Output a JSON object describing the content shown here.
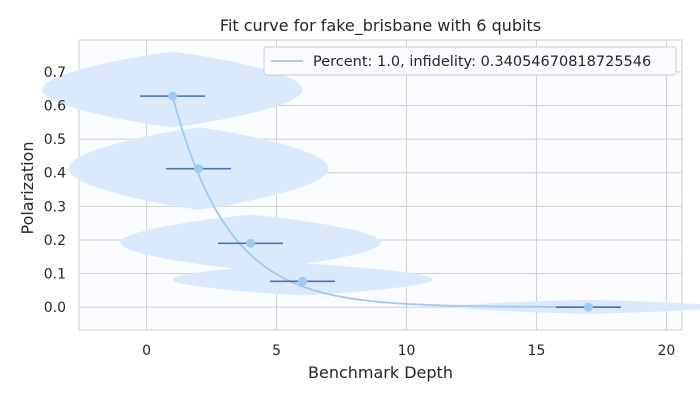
{
  "chart_data": {
    "type": "scatter",
    "title": "Fit curve for fake_brisbane with 6 qubits",
    "xlabel": "Benchmark Depth",
    "ylabel": "Polarization",
    "xlim": [
      -2.6,
      20.6
    ],
    "ylim": [
      -0.068,
      0.795
    ],
    "xticks": [
      0,
      5,
      10,
      15,
      20
    ],
    "xtick_labels": [
      "0",
      "5",
      "10",
      "15",
      "20"
    ],
    "yticks": [
      0.0,
      0.1,
      0.2,
      0.3,
      0.4,
      0.5,
      0.6,
      0.7
    ],
    "ytick_labels": [
      "0.0",
      "0.1",
      "0.2",
      "0.3",
      "0.4",
      "0.5",
      "0.6",
      "0.7"
    ],
    "grid": true,
    "legend_position": "top-right",
    "fit": {
      "label": "Percent: 1.0, infidelity: 0.34054670818725546",
      "model": "p^x",
      "p": 0.6284,
      "x_range": [
        1,
        18.2
      ],
      "color": "#a1c9f4"
    },
    "points": [
      {
        "x": 1,
        "y": 0.628,
        "xerr": 1.25
      },
      {
        "x": 2,
        "y": 0.412,
        "xerr": 1.25
      },
      {
        "x": 4,
        "y": 0.19,
        "xerr": 1.25
      },
      {
        "x": 6,
        "y": 0.077,
        "xerr": 1.25
      },
      {
        "x": 17,
        "y": 0.0,
        "xerr": 1.25
      }
    ],
    "violins": [
      {
        "x": 1,
        "y_min": 0.535,
        "y_max": 0.76,
        "max_half_width": 5.0
      },
      {
        "x": 2,
        "y_min": 0.29,
        "y_max": 0.535,
        "max_half_width": 5.0
      },
      {
        "x": 4,
        "y_min": 0.11,
        "y_max": 0.275,
        "max_half_width": 5.0
      },
      {
        "x": 6,
        "y_min": 0.035,
        "y_max": 0.13,
        "max_half_width": 5.0
      },
      {
        "x": 17,
        "y_min": -0.02,
        "y_max": 0.022,
        "max_half_width": 5.0
      }
    ],
    "colors": {
      "point": "#a1c9f4",
      "errorbar": "#4c72b0",
      "violin": "#dbe9fc",
      "plot_bg": "#fafbff",
      "grid": "#d0d0d0",
      "spine": "#cccccc"
    }
  }
}
